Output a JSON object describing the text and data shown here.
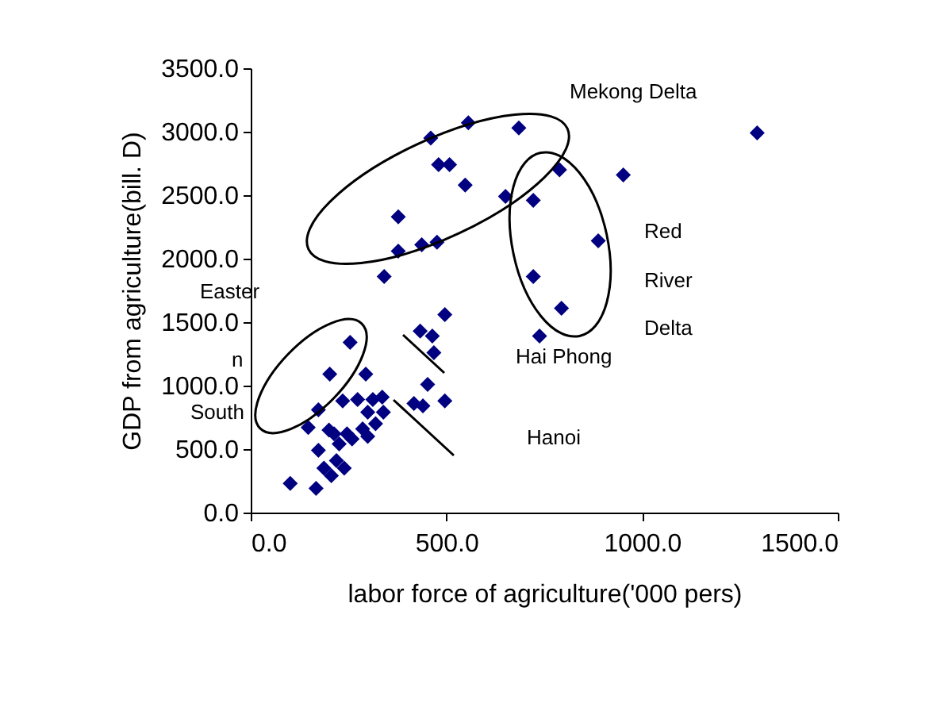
{
  "chart_data": {
    "type": "scatter",
    "xlabel": "labor force of agriculture('000 pers)",
    "ylabel": "GDP from agriculture(bill. D)",
    "x": [
      556,
      460,
      480,
      508,
      548,
      651,
      377,
      377,
      437,
      476,
      341,
      685,
      1294,
      789,
      952,
      722,
      888,
      722,
      794,
      738,
      496,
      433,
      464,
      468,
      452,
      417,
      440,
      496,
      254,
      202,
      294,
      235,
      273,
      312,
      336,
      299,
      339,
      319,
      286,
      246,
      213,
      173,
      147,
      200,
      173,
      226,
      259,
      219,
      187,
      206,
      239,
      101,
      167,
      299
    ],
    "series": [
      {
        "color": "#000080",
        "values": [
          3070,
          2950,
          2740,
          2740,
          2580,
          2490,
          2330,
          2060,
          2110,
          2130,
          1860,
          3030,
          2990,
          2700,
          2660,
          2460,
          2140,
          1860,
          1610,
          1390,
          1560,
          1430,
          1390,
          1260,
          1010,
          860,
          840,
          880,
          1340,
          1090,
          1090,
          880,
          890,
          890,
          910,
          790,
          790,
          700,
          660,
          620,
          620,
          810,
          670,
          650,
          490,
          540,
          580,
          410,
          350,
          290,
          350,
          230,
          190,
          600
        ]
      }
    ],
    "xlim": [
      0,
      1500
    ],
    "ylim": [
      0,
      3500
    ],
    "xticks": [
      {
        "value": 0,
        "label": "0.0"
      },
      {
        "value": 500,
        "label": "500.0"
      },
      {
        "value": 1000,
        "label": "1000.0"
      },
      {
        "value": 1500,
        "label": "1500.0"
      }
    ],
    "yticks": [
      {
        "value": 0,
        "label": "0.0"
      },
      {
        "value": 500,
        "label": "500.0"
      },
      {
        "value": 1000,
        "label": "1000.0"
      },
      {
        "value": 1500,
        "label": "1500.0"
      },
      {
        "value": 2000,
        "label": "2000.0"
      },
      {
        "value": 2500,
        "label": "2500.0"
      },
      {
        "value": 3000,
        "label": "3000.0"
      },
      {
        "value": 3500,
        "label": "3500.0"
      }
    ],
    "marker": "diamond",
    "annotations": [
      "Mekong Delta",
      "Red",
      "River",
      "Delta",
      "Hai Phong",
      "Hanoi",
      "Easter",
      "n",
      "South"
    ]
  }
}
